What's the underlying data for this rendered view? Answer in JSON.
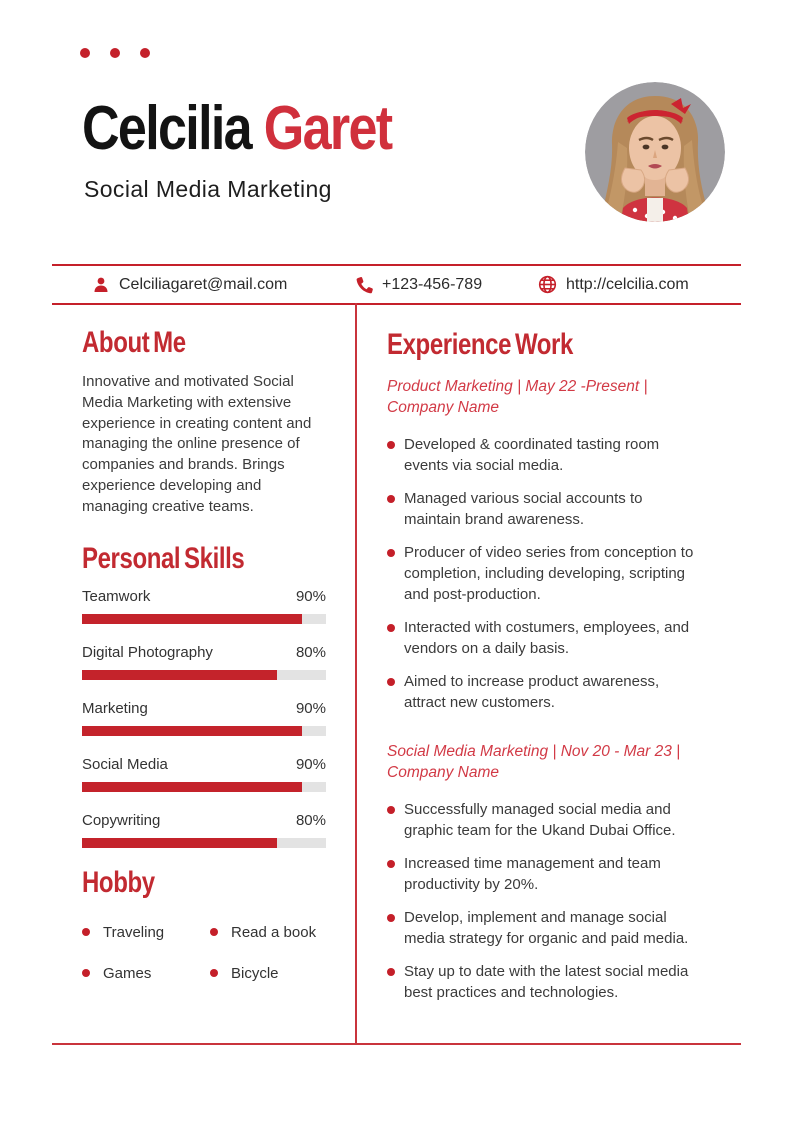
{
  "colors": {
    "accent": "#c22a31",
    "name_accent": "#d0303c",
    "bar_fill": "#c4232b",
    "bar_track": "#e3e3e3",
    "rule": "#c5202a"
  },
  "header": {
    "first_name": "Celcilia ",
    "last_name": "Garet",
    "subtitle": "Social Media Marketing"
  },
  "contact": {
    "email": "Celciliagaret@mail.com",
    "phone": "+123-456-789",
    "website": "http://celcilia.com"
  },
  "about": {
    "title": "About Me",
    "text": "Innovative and motivated Social Media Marketing with extensive experience in creating content and managing the online presence of companies and brands. Brings experience developing and managing creative teams."
  },
  "skills": {
    "title": "Personal Skills",
    "items": [
      {
        "label": "Teamwork",
        "value": "90%",
        "percent": 90
      },
      {
        "label": "Digital Photography",
        "value": "80%",
        "percent": 80
      },
      {
        "label": "Marketing",
        "value": "90%",
        "percent": 90
      },
      {
        "label": "Social Media",
        "value": "90%",
        "percent": 90
      },
      {
        "label": "Copywriting",
        "value": "80%",
        "percent": 80
      }
    ]
  },
  "hobby": {
    "title": "Hobby",
    "items": [
      "Traveling",
      "Read a book",
      "Games",
      "Bicycle"
    ]
  },
  "experience": {
    "title": "Experience Work",
    "jobs": [
      {
        "heading": "Product Marketing | May 22 -Present | Company Name",
        "bullets": [
          "Developed & coordinated tasting room events via social media.",
          "Managed various social accounts to maintain brand awareness.",
          "Producer of video series from conception to completion, including developing, scripting and post-production.",
          "Interacted with costumers, employees, and vendors on a daily basis.",
          "Aimed to increase product awareness, attract new customers."
        ]
      },
      {
        "heading": "Social Media Marketing | Nov 20 - Mar 23 | Company Name",
        "bullets": [
          "Successfully managed social media and graphic team for the Ukand Dubai Office.",
          "Increased time management and team productivity by 20%.",
          "Develop, implement and manage social media strategy for organic and paid media.",
          "Stay up to date with the latest social media best practices and technologies."
        ]
      }
    ]
  }
}
